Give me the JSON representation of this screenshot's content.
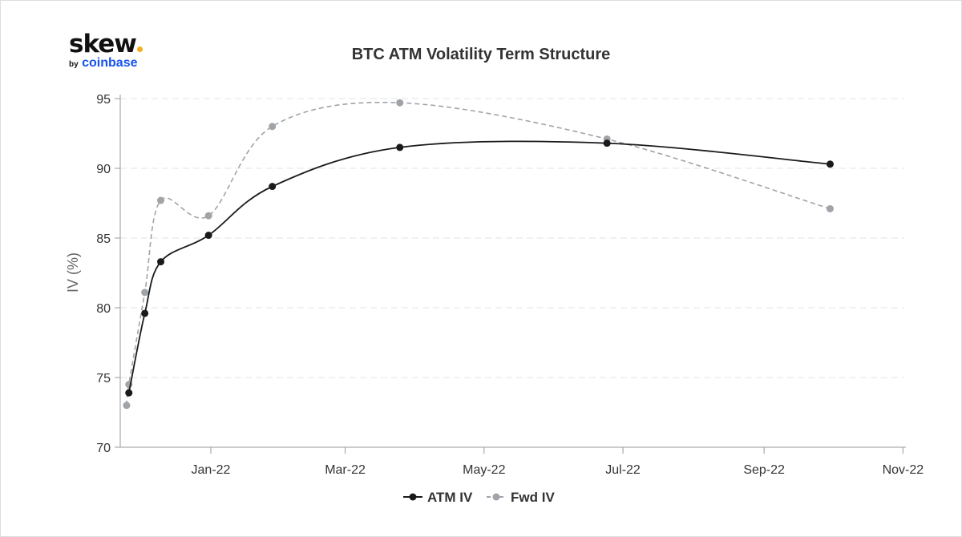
{
  "logo": {
    "text": "skew",
    "by": "by",
    "brand": "coinbase"
  },
  "chart_data": {
    "type": "line",
    "title": "BTC ATM Volatility Term Structure",
    "xlabel": "",
    "ylabel": "IV (%)",
    "ylim": [
      70,
      95
    ],
    "xlim": [
      "2021-11-22",
      "2022-11-01"
    ],
    "yticks": [
      70,
      75,
      80,
      85,
      90,
      95
    ],
    "xticks": [
      {
        "date": "2022-01-01",
        "label": "Jan-22"
      },
      {
        "date": "2022-03-01",
        "label": "Mar-22"
      },
      {
        "date": "2022-05-01",
        "label": "May-22"
      },
      {
        "date": "2022-07-01",
        "label": "Jul-22"
      },
      {
        "date": "2022-09-01",
        "label": "Sep-22"
      },
      {
        "date": "2022-11-01",
        "label": "Nov-22"
      }
    ],
    "grid": true,
    "legend_position": "bottom",
    "series": [
      {
        "name": "ATM IV",
        "color": "#1a1a1a",
        "style": "solid",
        "x": [
          "2021-11-26",
          "2021-12-03",
          "2021-12-10",
          "2021-12-31",
          "2022-01-28",
          "2022-03-25",
          "2022-06-24",
          "2022-09-30"
        ],
        "y": [
          73.9,
          79.6,
          83.3,
          85.2,
          88.7,
          91.5,
          91.8,
          90.3
        ]
      },
      {
        "name": "Fwd IV",
        "color": "#a0a4a8",
        "style": "dashed",
        "x": [
          "2021-11-25",
          "2021-11-26",
          "2021-12-03",
          "2021-12-10",
          "2021-12-31",
          "2022-01-28",
          "2022-03-25",
          "2022-06-24",
          "2022-09-30"
        ],
        "y": [
          73.0,
          74.5,
          81.1,
          87.7,
          86.6,
          93.0,
          94.7,
          92.1,
          87.1
        ]
      }
    ]
  }
}
